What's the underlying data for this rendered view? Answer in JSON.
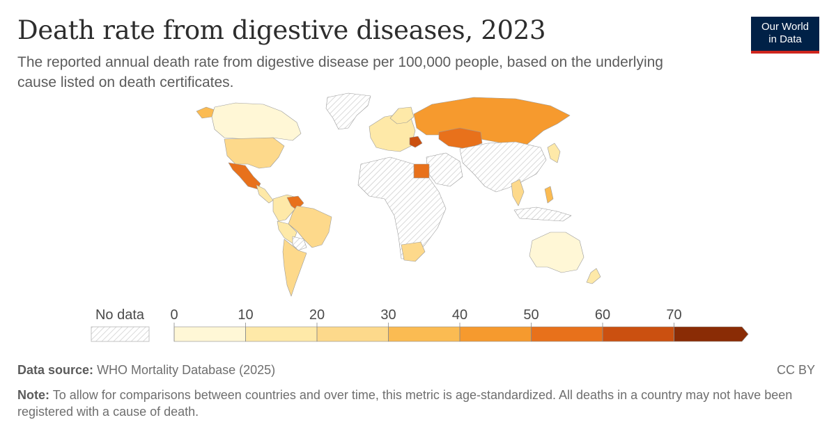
{
  "header": {
    "title": "Death rate from digestive diseases, 2023",
    "subtitle": "The reported annual death rate from digestive disease per 100,000 people, based on the underlying cause listed on death certificates."
  },
  "logo": {
    "line1": "Our World",
    "line2": "in Data",
    "bg_color": "#002147",
    "accent_color": "#ce261e"
  },
  "legend": {
    "no_data_label": "No data",
    "ticks": [
      "0",
      "10",
      "20",
      "30",
      "40",
      "50",
      "60",
      "70"
    ],
    "bins": [
      {
        "from": 0,
        "to": 10,
        "color": "#fff7d6"
      },
      {
        "from": 10,
        "to": 20,
        "color": "#fee9a8"
      },
      {
        "from": 20,
        "to": 30,
        "color": "#fdd98b"
      },
      {
        "from": 30,
        "to": 40,
        "color": "#fbbb52"
      },
      {
        "from": 40,
        "to": 50,
        "color": "#f69a2e"
      },
      {
        "from": 50,
        "to": 60,
        "color": "#e8711b"
      },
      {
        "from": 60,
        "to": 70,
        "color": "#cb5010"
      },
      {
        "from": 70,
        "to": null,
        "color": "#8a2c05"
      }
    ]
  },
  "footer": {
    "source_label": "Data source:",
    "source_text": "WHO Mortality Database (2025)",
    "license": "CC BY",
    "note_label": "Note:",
    "note_text": "To allow for comparisons between countries and over time, this metric is age-standardized. All deaths in a country may not have been registered with a cause of death."
  }
}
